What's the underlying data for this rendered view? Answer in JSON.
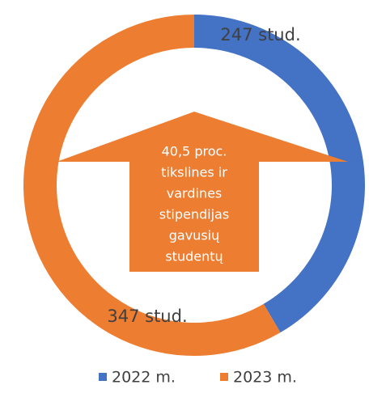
{
  "chart_data": {
    "type": "donut",
    "categories": [
      "2022 m.",
      "2023 m."
    ],
    "values": [
      247,
      347
    ],
    "value_labels": [
      "247 stud.",
      "347 stud."
    ],
    "colors": [
      "#4472c4",
      "#ed7d31"
    ],
    "annotation": [
      "40,5 proc.",
      "tikslines ir",
      "vardines",
      "stipendijas",
      "gavusių",
      "studentų"
    ]
  }
}
